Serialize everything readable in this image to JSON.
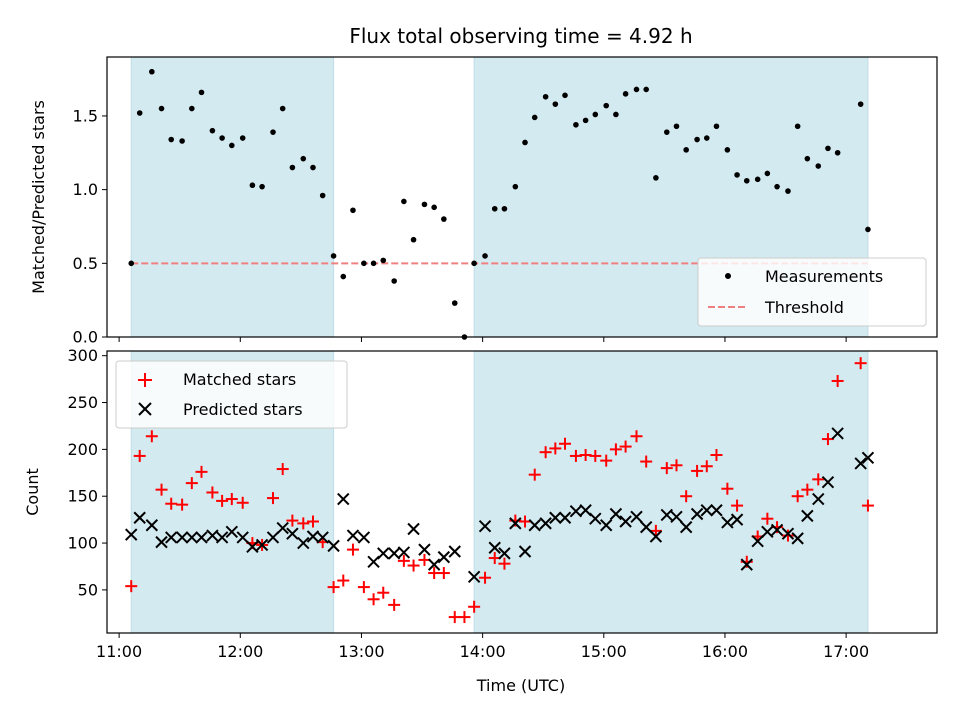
{
  "chart_data": [
    {
      "type": "scatter",
      "title": "Flux total observing time = 4.92 h",
      "xlabel": "",
      "ylabel": "Matched/Predicted stars",
      "ylim": [
        0,
        1.9
      ],
      "yticks": [
        0.0,
        0.5,
        1.0,
        1.5
      ],
      "ytick_labels": [
        "0.0",
        "0.5",
        "1.0",
        "1.5"
      ],
      "xlim_hours": [
        10.9,
        17.75
      ],
      "x_unit": "hours UTC",
      "shaded_intervals_hours": [
        [
          11.1,
          12.77
        ],
        [
          13.93,
          17.18
        ]
      ],
      "shade_color": "#d4eaf1",
      "legend": {
        "placement": "lower-right",
        "entries": [
          "Measurements",
          "Threshold"
        ]
      },
      "threshold": {
        "name": "Threshold",
        "value": 0.5,
        "x_range_hours": [
          11.1,
          17.18
        ],
        "color": "#f08080",
        "style": "dashed"
      },
      "series": [
        {
          "name": "Measurements",
          "marker": "dot",
          "color": "#000000",
          "x": [
            11.1,
            11.17,
            11.27,
            11.35,
            11.43,
            11.52,
            11.6,
            11.68,
            11.77,
            11.85,
            11.93,
            12.02,
            12.1,
            12.18,
            12.27,
            12.35,
            12.43,
            12.52,
            12.6,
            12.68,
            12.77,
            12.85,
            12.93,
            13.02,
            13.1,
            13.18,
            13.27,
            13.35,
            13.43,
            13.52,
            13.6,
            13.68,
            13.77,
            13.85,
            13.93,
            14.02,
            14.1,
            14.18,
            14.27,
            14.35,
            14.43,
            14.52,
            14.6,
            14.68,
            14.77,
            14.85,
            14.93,
            15.02,
            15.1,
            15.18,
            15.27,
            15.35,
            15.43,
            15.52,
            15.6,
            15.68,
            15.77,
            15.85,
            15.93,
            16.02,
            16.1,
            16.18,
            16.27,
            16.35,
            16.43,
            16.52,
            16.6,
            16.68,
            16.77,
            16.85,
            16.93,
            17.12,
            17.18
          ],
          "y": [
            0.5,
            1.52,
            1.8,
            1.55,
            1.34,
            1.33,
            1.55,
            1.66,
            1.4,
            1.35,
            1.3,
            1.35,
            1.03,
            1.02,
            1.39,
            1.55,
            1.15,
            1.21,
            1.15,
            0.96,
            0.55,
            0.41,
            0.86,
            0.5,
            0.5,
            0.52,
            0.38,
            0.92,
            0.66,
            0.9,
            0.88,
            0.8,
            0.23,
            0.0,
            0.5,
            0.55,
            0.87,
            0.87,
            1.02,
            1.32,
            1.49,
            1.63,
            1.58,
            1.64,
            1.44,
            1.47,
            1.51,
            1.57,
            1.51,
            1.65,
            1.68,
            1.68,
            1.08,
            1.39,
            1.43,
            1.27,
            1.34,
            1.35,
            1.43,
            1.27,
            1.1,
            1.06,
            1.07,
            1.11,
            1.02,
            0.99,
            1.43,
            1.21,
            1.16,
            1.28,
            1.25,
            1.58,
            0.73
          ]
        }
      ]
    },
    {
      "type": "scatter",
      "title": "",
      "xlabel": "Time (UTC)",
      "ylabel": "Count",
      "ylim": [
        4,
        305
      ],
      "yticks": [
        50,
        100,
        150,
        200,
        250,
        300
      ],
      "ytick_labels": [
        "50",
        "100",
        "150",
        "200",
        "250",
        "300"
      ],
      "xlim_hours": [
        10.9,
        17.75
      ],
      "xticks_hours": [
        11,
        12,
        13,
        14,
        15,
        16,
        17
      ],
      "xtick_labels": [
        "11:00",
        "12:00",
        "13:00",
        "14:00",
        "15:00",
        "16:00",
        "17:00"
      ],
      "shaded_intervals_hours": [
        [
          11.1,
          12.77
        ],
        [
          13.93,
          17.18
        ]
      ],
      "shade_color": "#d4eaf1",
      "legend": {
        "placement": "upper-left",
        "entries": [
          "Matched stars",
          "Predicted stars"
        ]
      },
      "series": [
        {
          "name": "Matched stars",
          "marker": "plus",
          "color": "#ff0000",
          "x": [
            11.1,
            11.17,
            11.27,
            11.35,
            11.43,
            11.52,
            11.6,
            11.68,
            11.77,
            11.85,
            11.93,
            12.02,
            12.1,
            12.18,
            12.27,
            12.35,
            12.43,
            12.52,
            12.6,
            12.68,
            12.77,
            12.85,
            12.93,
            13.02,
            13.1,
            13.18,
            13.27,
            13.35,
            13.43,
            13.52,
            13.6,
            13.68,
            13.77,
            13.85,
            13.93,
            14.02,
            14.1,
            14.18,
            14.27,
            14.35,
            14.43,
            14.52,
            14.6,
            14.68,
            14.77,
            14.85,
            14.93,
            15.02,
            15.1,
            15.18,
            15.27,
            15.35,
            15.43,
            15.52,
            15.6,
            15.68,
            15.77,
            15.85,
            15.93,
            16.02,
            16.1,
            16.18,
            16.27,
            16.35,
            16.43,
            16.52,
            16.6,
            16.68,
            16.77,
            16.85,
            16.93,
            17.12,
            17.18
          ],
          "y": [
            54,
            193,
            214,
            157,
            142,
            141,
            164,
            176,
            154,
            145,
            147,
            143,
            100,
            98,
            148,
            179,
            124,
            121,
            123,
            101,
            53,
            60,
            93,
            53,
            40,
            47,
            34,
            81,
            76,
            82,
            68,
            68,
            21,
            21,
            32,
            63,
            84,
            78,
            124,
            123,
            173,
            197,
            201,
            206,
            193,
            194,
            193,
            188,
            200,
            203,
            214,
            187,
            113,
            180,
            183,
            150,
            177,
            182,
            194,
            158,
            140,
            80,
            107,
            126,
            117,
            108,
            150,
            157,
            168,
            211,
            273,
            292,
            140
          ]
        },
        {
          "name": "Predicted stars",
          "marker": "x",
          "color": "#000000",
          "x": [
            11.1,
            11.17,
            11.27,
            11.35,
            11.43,
            11.52,
            11.6,
            11.68,
            11.77,
            11.85,
            11.93,
            12.02,
            12.1,
            12.18,
            12.27,
            12.35,
            12.43,
            12.52,
            12.6,
            12.68,
            12.77,
            12.85,
            12.93,
            13.02,
            13.1,
            13.18,
            13.27,
            13.35,
            13.43,
            13.52,
            13.6,
            13.68,
            13.77,
            13.93,
            14.02,
            14.1,
            14.18,
            14.27,
            14.35,
            14.43,
            14.52,
            14.6,
            14.68,
            14.77,
            14.85,
            14.93,
            15.02,
            15.1,
            15.18,
            15.27,
            15.35,
            15.43,
            15.52,
            15.6,
            15.68,
            15.77,
            15.85,
            15.93,
            16.02,
            16.1,
            16.18,
            16.27,
            16.35,
            16.43,
            16.52,
            16.6,
            16.68,
            16.77,
            16.85,
            16.93,
            17.12,
            17.18
          ],
          "y": [
            109,
            127,
            119,
            101,
            106,
            106,
            106,
            106,
            108,
            106,
            112,
            106,
            96,
            98,
            106,
            116,
            110,
            100,
            107,
            106,
            97,
            147,
            108,
            106,
            80,
            89,
            89,
            90,
            115,
            93,
            77,
            85,
            91,
            64,
            118,
            95,
            89,
            121,
            91,
            119,
            121,
            127,
            127,
            134,
            135,
            126,
            119,
            131,
            123,
            128,
            117,
            107,
            130,
            128,
            117,
            131,
            135,
            135,
            122,
            125,
            77,
            102,
            112,
            114,
            110,
            105,
            129,
            147,
            165,
            217,
            185,
            191
          ]
        }
      ]
    }
  ]
}
